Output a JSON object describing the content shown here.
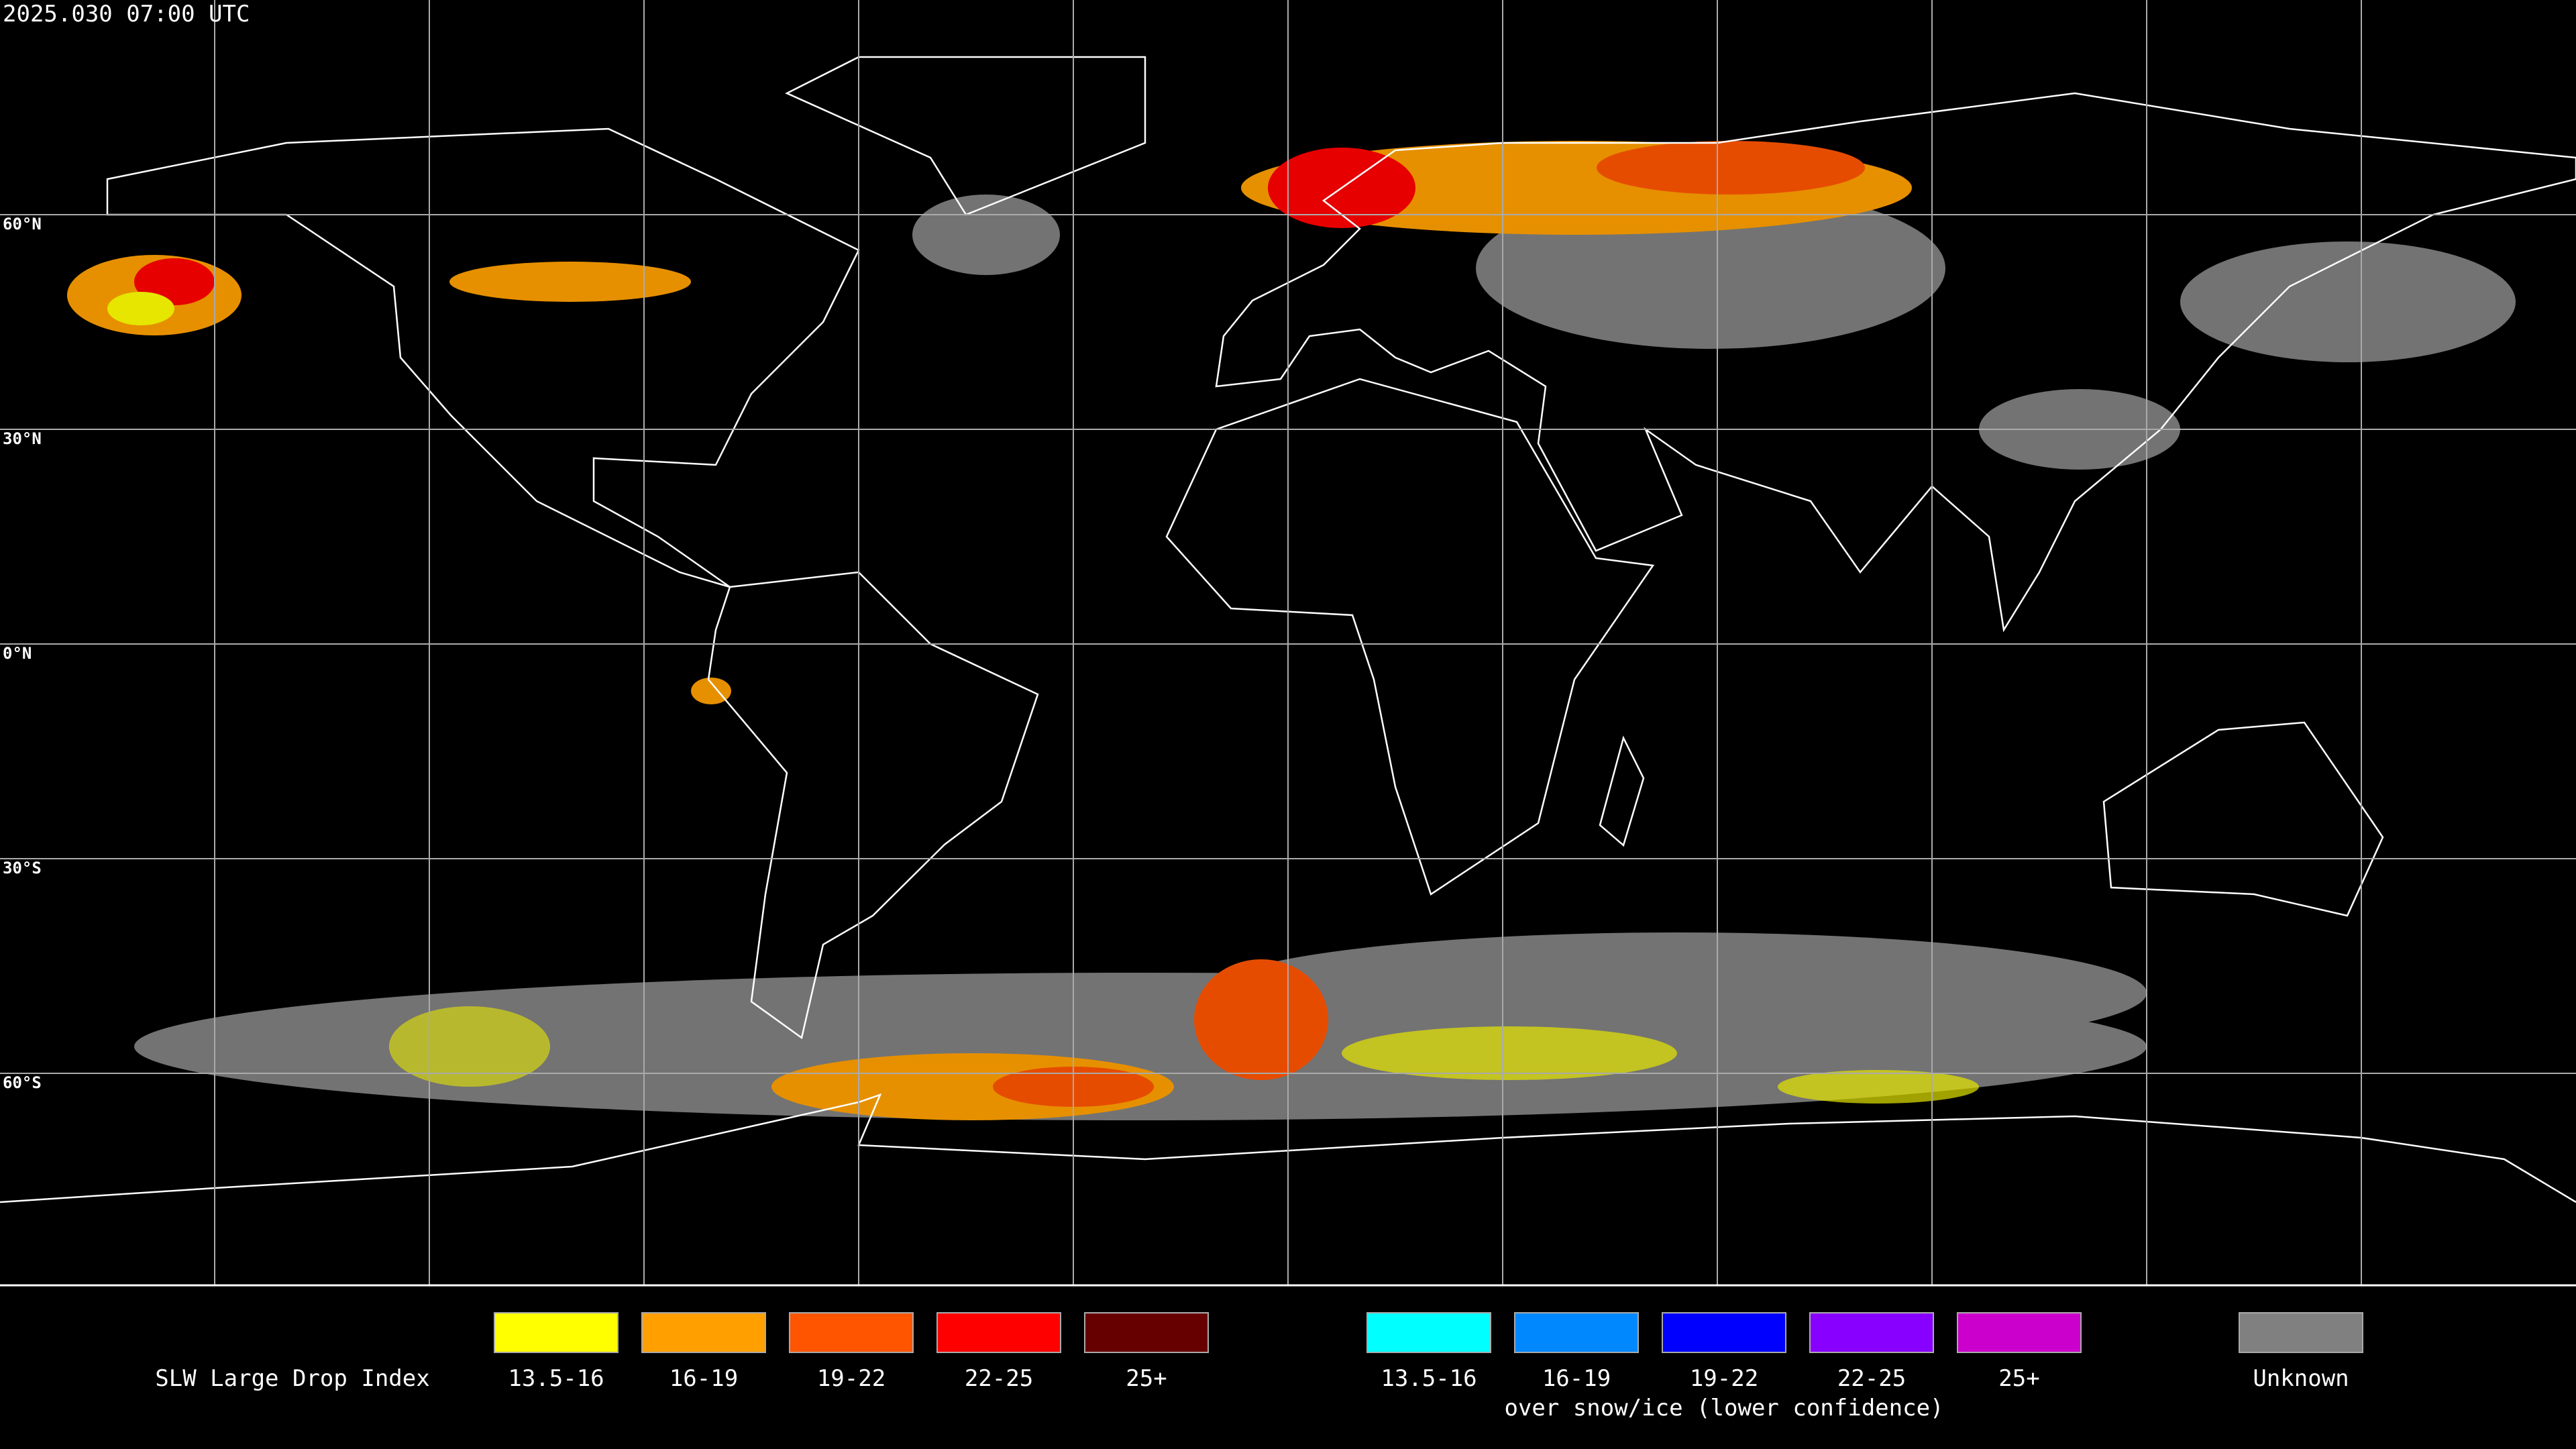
{
  "header": {
    "timestamp": "2025.030 07:00 UTC"
  },
  "latitude_labels": [
    "60°N",
    "30°N",
    "0°N",
    "30°S",
    "60°S"
  ],
  "legend": {
    "title": "SLW Large Drop Index",
    "groups": [
      {
        "items": [
          {
            "label": "13.5-16",
            "color": "#ffff00"
          },
          {
            "label": "16-19",
            "color": "#ffa000"
          },
          {
            "label": "19-22",
            "color": "#ff5500"
          },
          {
            "label": "22-25",
            "color": "#ff0000"
          },
          {
            "label": "25+",
            "color": "#660000"
          }
        ]
      },
      {
        "items": [
          {
            "label": "13.5-16",
            "color": "#00ffff"
          },
          {
            "label": "16-19",
            "color": "#0088ff"
          },
          {
            "label": "19-22",
            "color": "#0000ff"
          },
          {
            "label": "22-25",
            "color": "#8800ff"
          },
          {
            "label": "25+",
            "color": "#cc00cc"
          }
        ],
        "note": "over snow/ice (lower confidence)"
      },
      {
        "items": [
          {
            "label": "Unknown",
            "color": "#808080"
          }
        ]
      }
    ]
  }
}
